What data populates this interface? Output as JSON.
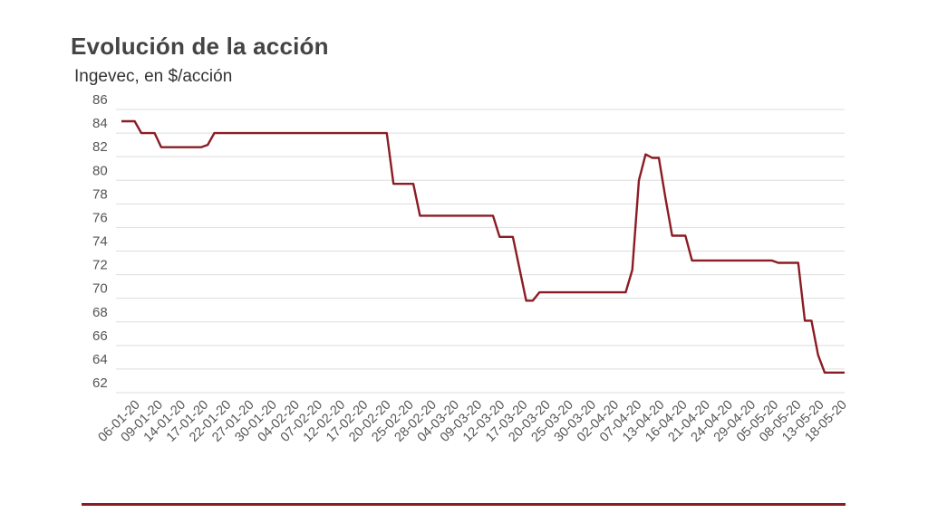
{
  "colors": {
    "line": "#8b1c24",
    "grid": "#dddddd",
    "rule": "#8b1c24"
  },
  "chart_data": {
    "type": "line",
    "title": "Evolución de la acción",
    "subtitle": "Ingevec, en $/acción",
    "xlabel": "",
    "ylabel": "",
    "ylim": [
      62,
      86
    ],
    "yticks": [
      62,
      64,
      66,
      68,
      70,
      72,
      74,
      76,
      78,
      80,
      82,
      84,
      86
    ],
    "grid": true,
    "legend": "none",
    "xtick_labels": [
      "06-01-20",
      "09-01-20",
      "14-01-20",
      "17-01-20",
      "22-01-20",
      "27-01-20",
      "30-01-20",
      "04-02-20",
      "07-02-20",
      "12-02-20",
      "17-02-20",
      "20-02-20",
      "25-02-20",
      "28-02-20",
      "04-03-20",
      "09-03-20",
      "12-03-20",
      "17-03-20",
      "20-03-20",
      "25-03-20",
      "30-03-20",
      "02-04-20",
      "07-04-20",
      "13-04-20",
      "16-04-20",
      "21-04-20",
      "24-04-20",
      "29-04-20",
      "05-05-20",
      "08-05-20",
      "13-05-20",
      "18-05-20"
    ],
    "series": [
      {
        "values": [
          85,
          85,
          85,
          84,
          84,
          84,
          82.8,
          82.8,
          82.8,
          82.8,
          82.8,
          82.8,
          82.8,
          83,
          84,
          84,
          84,
          84,
          84,
          84,
          84,
          84,
          84,
          84,
          84,
          84,
          84,
          84,
          84,
          84,
          84,
          84,
          84,
          84,
          84,
          84,
          84,
          84,
          84,
          84,
          84,
          79.7,
          79.7,
          79.7,
          79.7,
          77,
          77,
          77,
          77,
          77,
          77,
          77,
          77,
          77,
          77,
          77,
          77,
          75.2,
          75.2,
          75.2,
          72.5,
          69.8,
          69.8,
          70.5,
          70.5,
          70.5,
          70.5,
          70.5,
          70.5,
          70.5,
          70.5,
          70.5,
          70.5,
          70.5,
          70.5,
          70.5,
          70.5,
          72.4,
          80,
          82.2,
          81.9,
          81.9,
          78.5,
          75.3,
          75.3,
          75.3,
          73.2,
          73.2,
          73.2,
          73.2,
          73.2,
          73.2,
          73.2,
          73.2,
          73.2,
          73.2,
          73.2,
          73.2,
          73.2,
          73,
          73,
          73,
          73,
          68.1,
          68.1,
          65.2,
          63.7,
          63.7,
          63.7,
          63.7
        ]
      }
    ]
  }
}
